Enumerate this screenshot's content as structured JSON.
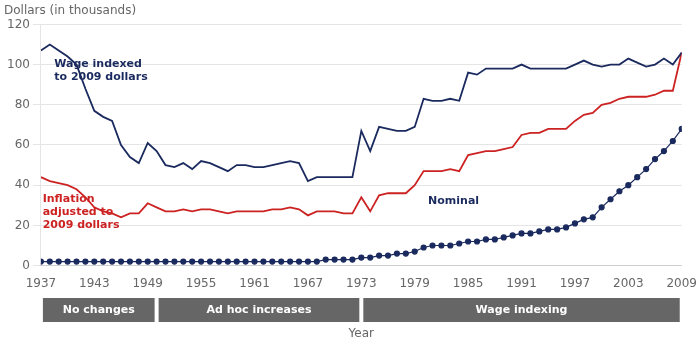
{
  "chart_data": {
    "type": "line",
    "ylabel": "Dollars (in thousands)",
    "xlabel": "Year",
    "xlim": [
      1937,
      2009
    ],
    "xticks": [
      1937,
      1943,
      1949,
      1955,
      1961,
      1967,
      1973,
      1979,
      1985,
      1991,
      1997,
      2003,
      2009
    ],
    "ylim": [
      0,
      120
    ],
    "yticks": [
      0,
      20,
      40,
      60,
      80,
      100,
      120
    ],
    "grid": "y",
    "x": [
      1937,
      1938,
      1939,
      1940,
      1941,
      1942,
      1943,
      1944,
      1945,
      1946,
      1947,
      1948,
      1949,
      1950,
      1951,
      1952,
      1953,
      1954,
      1955,
      1956,
      1957,
      1958,
      1959,
      1960,
      1961,
      1962,
      1963,
      1964,
      1965,
      1966,
      1967,
      1968,
      1969,
      1970,
      1971,
      1972,
      1973,
      1974,
      1975,
      1976,
      1977,
      1978,
      1979,
      1980,
      1981,
      1982,
      1983,
      1984,
      1985,
      1986,
      1987,
      1988,
      1989,
      1990,
      1991,
      1992,
      1993,
      1994,
      1995,
      1996,
      1997,
      1998,
      1999,
      2000,
      2001,
      2002,
      2003,
      2004,
      2005,
      2006,
      2007,
      2008,
      2009
    ],
    "series": [
      {
        "color": "#1a2a5e",
        "values": [
          107,
          110,
          107,
          104,
          100,
          88,
          77,
          74,
          72,
          60,
          54,
          51,
          61,
          57,
          50,
          49,
          51,
          48,
          52,
          51,
          49,
          47,
          50,
          50,
          49,
          49,
          50,
          51,
          52,
          51,
          42,
          44,
          44,
          44,
          44,
          44,
          67,
          57,
          69,
          68,
          67,
          67,
          69,
          83,
          82,
          82,
          83,
          82,
          96,
          95,
          98,
          98,
          98,
          98,
          100,
          98,
          98,
          98,
          98,
          98,
          100,
          102,
          100,
          99,
          100,
          100,
          103,
          101,
          99,
          100,
          103,
          100,
          106
        ]
      },
      {
        "color": "#cc2222",
        "values": [
          44,
          42,
          41,
          40,
          38,
          34,
          29,
          27,
          26,
          24,
          26,
          26,
          31,
          29,
          27,
          27,
          28,
          27,
          28,
          28,
          27,
          26,
          27,
          27,
          27,
          27,
          28,
          28,
          29,
          28,
          25,
          27,
          27,
          27,
          26,
          26,
          34,
          27,
          35,
          36,
          36,
          36,
          40,
          47,
          47,
          47,
          48,
          47,
          55,
          56,
          57,
          57,
          58,
          59,
          65,
          66,
          66,
          68,
          68,
          68,
          72,
          75,
          76,
          80,
          81,
          83,
          84,
          84,
          84,
          85,
          87,
          87,
          106
        ]
      },
      {
        "color": "#1a2a5e",
        "marker": "circle",
        "values": [
          2,
          2,
          2,
          2,
          2,
          2,
          2,
          2,
          2,
          2,
          2,
          2,
          2,
          2,
          2,
          2,
          2,
          2,
          2,
          2,
          2,
          2,
          2,
          2,
          2,
          2,
          2,
          2,
          2,
          2,
          2,
          2,
          3,
          3,
          3,
          3,
          4,
          4,
          5,
          5,
          6,
          6,
          7,
          9,
          10,
          10,
          10,
          11,
          12,
          12,
          13,
          13,
          14,
          15,
          16,
          16,
          17,
          18,
          18,
          19,
          21,
          23,
          24,
          29,
          33,
          37,
          40,
          44,
          48,
          53,
          57,
          62,
          68
        ]
      }
    ],
    "annotations": [
      {
        "text": "Wage indexed\nto 2009 dollars",
        "x": 1938.5,
        "y": 103,
        "color": "#1a2a5e"
      },
      {
        "text": "Inflation\nadjusted to\n2009 dollars",
        "x": 1937.2,
        "y": 36,
        "color": "#cc2222"
      },
      {
        "text": "Nominal",
        "x": 1980.5,
        "y": 35,
        "color": "#1a2a5e"
      }
    ],
    "periods": [
      {
        "label": "No changes",
        "start": 1937,
        "end": 1950
      },
      {
        "label": "Ad hoc increases",
        "start": 1950,
        "end": 1973
      },
      {
        "label": "Wage indexing",
        "start": 1973,
        "end": 2009
      }
    ]
  }
}
